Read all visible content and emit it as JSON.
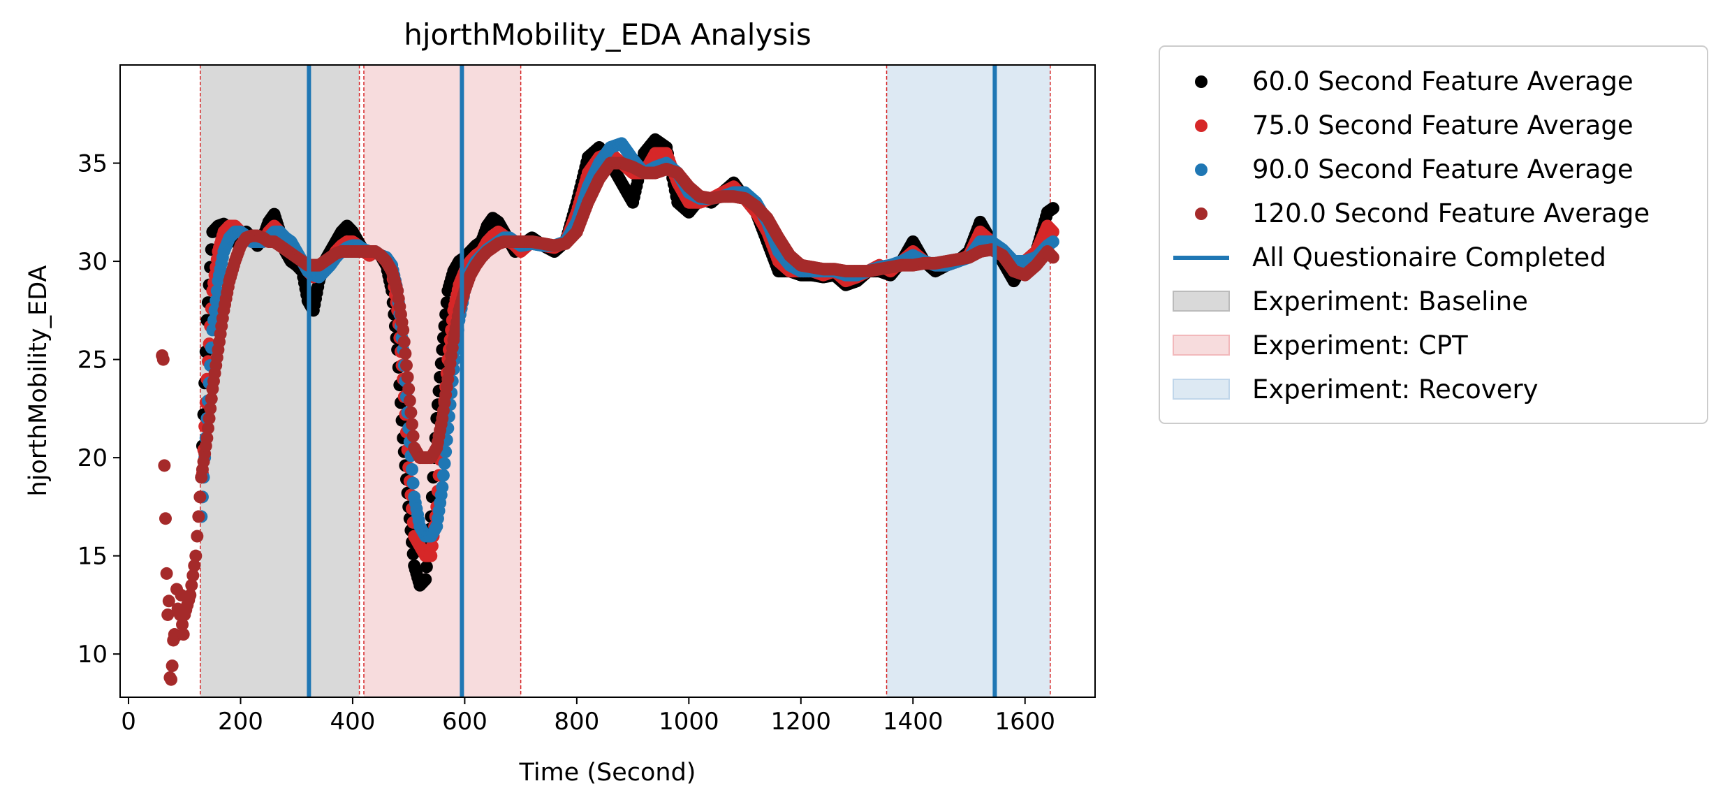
{
  "chart_data": {
    "type": "scatter",
    "title": "hjorthMobility_EDA Analysis",
    "xlabel": "Time (Second)",
    "ylabel": "hjorthMobility_EDA",
    "xlim": [
      -15,
      1725
    ],
    "ylim": [
      7.8,
      40
    ],
    "xticks": [
      0,
      200,
      400,
      600,
      800,
      1000,
      1200,
      1400,
      1600
    ],
    "yticks": [
      10,
      15,
      20,
      25,
      30,
      35
    ],
    "grid": false,
    "legend_position": "outside-right",
    "series": [
      {
        "name": "60.0 Second Feature Average",
        "color": "#000000",
        "x": [
          130,
          140,
          150,
          160,
          170,
          180,
          190,
          200,
          210,
          220,
          230,
          240,
          250,
          260,
          270,
          280,
          290,
          300,
          310,
          320,
          330,
          340,
          350,
          360,
          370,
          380,
          390,
          400,
          410,
          420,
          430,
          440,
          450,
          460,
          470,
          480,
          490,
          500,
          510,
          520,
          530,
          540,
          550,
          560,
          570,
          580,
          590,
          600,
          610,
          620,
          630,
          640,
          650,
          660,
          670,
          680,
          690,
          700,
          720,
          740,
          760,
          780,
          800,
          820,
          840,
          860,
          880,
          900,
          920,
          940,
          960,
          980,
          1000,
          1020,
          1040,
          1060,
          1080,
          1100,
          1120,
          1140,
          1160,
          1180,
          1200,
          1220,
          1240,
          1260,
          1280,
          1300,
          1320,
          1340,
          1360,
          1380,
          1400,
          1420,
          1440,
          1460,
          1480,
          1500,
          1520,
          1540,
          1560,
          1580,
          1600,
          1620,
          1640,
          1650
        ],
        "y": [
          19,
          27,
          31.5,
          31.8,
          31.9,
          31.5,
          31,
          31.3,
          31.5,
          31.2,
          30.8,
          31.2,
          32,
          32.4,
          31.5,
          30.5,
          30,
          29.8,
          29.5,
          28,
          27.5,
          29,
          30,
          30.5,
          31,
          31.5,
          31.8,
          31.5,
          31,
          30.5,
          30.3,
          30.5,
          30.3,
          29.8,
          28.5,
          25.5,
          21,
          17.5,
          14.5,
          13.5,
          13.8,
          17,
          22,
          25.5,
          28.5,
          29.5,
          30,
          30.2,
          30.5,
          30.8,
          31,
          31.8,
          32.2,
          32,
          31.5,
          31,
          30.5,
          30.8,
          31.2,
          30.8,
          30.5,
          31,
          33,
          35.3,
          35.8,
          35,
          34,
          33,
          35.5,
          36.2,
          35.8,
          33,
          32.5,
          33.2,
          33,
          33.5,
          34,
          33.2,
          32.5,
          31,
          29.5,
          29.5,
          29.3,
          29.3,
          29.2,
          29.3,
          28.8,
          29,
          29.5,
          29.5,
          29.3,
          30,
          31,
          30,
          29.5,
          29.8,
          30,
          30.5,
          32,
          31,
          30,
          29,
          30,
          30.5,
          32.5,
          32.7
        ]
      },
      {
        "name": "75.0 Second Feature Average",
        "color": "#d62728",
        "x": [
          130,
          140,
          150,
          160,
          170,
          180,
          190,
          200,
          210,
          220,
          230,
          240,
          250,
          260,
          270,
          280,
          290,
          300,
          310,
          320,
          330,
          340,
          350,
          360,
          370,
          380,
          390,
          400,
          410,
          420,
          430,
          440,
          450,
          460,
          470,
          480,
          490,
          500,
          510,
          520,
          530,
          540,
          550,
          560,
          570,
          580,
          590,
          600,
          610,
          620,
          630,
          640,
          650,
          660,
          670,
          680,
          690,
          700,
          720,
          740,
          760,
          780,
          800,
          820,
          840,
          860,
          880,
          900,
          920,
          940,
          960,
          980,
          1000,
          1020,
          1040,
          1060,
          1080,
          1100,
          1120,
          1140,
          1160,
          1180,
          1200,
          1220,
          1240,
          1260,
          1280,
          1300,
          1320,
          1340,
          1360,
          1380,
          1400,
          1420,
          1440,
          1460,
          1480,
          1500,
          1520,
          1540,
          1560,
          1580,
          1600,
          1620,
          1640,
          1650
        ],
        "y": [
          18,
          24,
          28.5,
          30.5,
          31.5,
          31.8,
          31.8,
          31.5,
          31.2,
          31,
          31,
          31,
          31.5,
          31.8,
          31.5,
          31,
          30.5,
          30.3,
          30,
          29.5,
          29.2,
          29.5,
          29.8,
          30,
          30.5,
          30.8,
          31,
          31,
          30.8,
          30.5,
          30.3,
          30.5,
          30.3,
          30,
          29.5,
          27.5,
          24,
          19.5,
          16,
          15.5,
          15,
          15,
          17.5,
          21.5,
          25,
          27.5,
          28.8,
          29.5,
          30,
          30.3,
          30.5,
          31,
          31.3,
          31.5,
          31.3,
          31,
          30.8,
          30.5,
          31,
          30.8,
          30.7,
          31,
          32.5,
          34.5,
          35.3,
          35.5,
          35,
          34.5,
          34.5,
          35.5,
          35.5,
          34,
          33,
          33,
          33.2,
          33.5,
          33.8,
          33.2,
          32.5,
          31.5,
          30,
          29.5,
          29.5,
          29.5,
          29.3,
          29.5,
          29,
          29.2,
          29.5,
          29.8,
          29.5,
          30,
          30.5,
          30,
          29.8,
          29.8,
          30,
          30.3,
          31.5,
          31,
          30.5,
          29.5,
          30,
          30.5,
          31.8,
          31.5
        ]
      },
      {
        "name": "90.0 Second Feature Average",
        "color": "#1f77b4",
        "x": [
          130,
          140,
          150,
          160,
          170,
          180,
          190,
          200,
          210,
          220,
          230,
          240,
          250,
          260,
          270,
          280,
          290,
          300,
          310,
          320,
          330,
          340,
          350,
          360,
          370,
          380,
          390,
          400,
          410,
          420,
          430,
          440,
          450,
          460,
          470,
          480,
          490,
          500,
          510,
          520,
          530,
          540,
          550,
          560,
          570,
          580,
          590,
          600,
          610,
          620,
          630,
          640,
          650,
          660,
          670,
          680,
          690,
          700,
          720,
          740,
          760,
          780,
          800,
          820,
          840,
          860,
          880,
          900,
          920,
          940,
          960,
          980,
          1000,
          1020,
          1040,
          1060,
          1080,
          1100,
          1120,
          1140,
          1160,
          1180,
          1200,
          1220,
          1240,
          1260,
          1280,
          1300,
          1320,
          1340,
          1360,
          1380,
          1400,
          1420,
          1440,
          1460,
          1480,
          1500,
          1520,
          1540,
          1560,
          1580,
          1600,
          1620,
          1640,
          1650
        ],
        "y": [
          17,
          22,
          26.5,
          29,
          30.5,
          31.2,
          31.5,
          31.5,
          31.3,
          31,
          31,
          31,
          31.2,
          31.5,
          31.5,
          31.2,
          31,
          30.5,
          30,
          29.5,
          29.3,
          29.2,
          29.5,
          29.8,
          30.2,
          30.5,
          30.7,
          30.8,
          30.8,
          30.6,
          30.5,
          30.5,
          30.3,
          30.2,
          29.8,
          28.5,
          25.5,
          21.5,
          18,
          16.5,
          16,
          16,
          16.5,
          18.5,
          21.5,
          24.5,
          27,
          28.5,
          29.5,
          30,
          30.3,
          30.6,
          30.8,
          31,
          31.2,
          31.2,
          31,
          30.8,
          30.9,
          30.8,
          30.8,
          31,
          32,
          33.8,
          35,
          35.8,
          36,
          35.2,
          34.5,
          34.8,
          35,
          34.5,
          33.5,
          33.2,
          33.2,
          33.3,
          33.5,
          33.5,
          33,
          32,
          30.5,
          29.8,
          29.5,
          29.5,
          29.5,
          29.5,
          29.3,
          29.3,
          29.5,
          29.7,
          29.8,
          30,
          30.3,
          30,
          29.8,
          29.8,
          30,
          30.2,
          31,
          31,
          30.6,
          30,
          30,
          30.2,
          30.8,
          31
        ]
      },
      {
        "name": "120.0 Second Feature Average",
        "color": "#a52a2a",
        "x": [
          60,
          62,
          64,
          66,
          68,
          70,
          72,
          74,
          76,
          78,
          80,
          82,
          84,
          86,
          88,
          90,
          92,
          94,
          96,
          98,
          100,
          105,
          110,
          115,
          120,
          125,
          130,
          140,
          150,
          160,
          170,
          180,
          190,
          200,
          210,
          220,
          230,
          240,
          250,
          260,
          270,
          280,
          290,
          300,
          310,
          320,
          330,
          340,
          350,
          360,
          370,
          380,
          390,
          400,
          410,
          420,
          430,
          440,
          450,
          460,
          470,
          480,
          490,
          500,
          510,
          520,
          530,
          540,
          550,
          560,
          570,
          580,
          590,
          600,
          610,
          620,
          630,
          640,
          650,
          660,
          670,
          680,
          690,
          700,
          720,
          740,
          760,
          780,
          800,
          820,
          840,
          860,
          880,
          900,
          920,
          940,
          960,
          980,
          1000,
          1020,
          1040,
          1060,
          1080,
          1100,
          1120,
          1140,
          1160,
          1180,
          1200,
          1220,
          1240,
          1260,
          1280,
          1300,
          1320,
          1340,
          1360,
          1380,
          1400,
          1420,
          1440,
          1460,
          1480,
          1500,
          1520,
          1540,
          1560,
          1580,
          1600,
          1620,
          1640,
          1650
        ],
        "y": [
          25.2,
          25,
          19.6,
          16.9,
          14.1,
          12,
          12.7,
          8.8,
          8.7,
          9.4,
          10.7,
          11,
          10.9,
          13.3,
          12.3,
          12.2,
          12,
          13,
          11.5,
          11,
          12,
          12.5,
          13,
          14,
          15,
          17,
          19,
          21,
          23.5,
          25.5,
          27.5,
          29,
          30,
          30.8,
          31.2,
          31.3,
          31.3,
          31.2,
          31,
          31,
          30.8,
          30.6,
          30.4,
          30.2,
          30,
          29.8,
          29.8,
          29.8,
          30,
          30.2,
          30.4,
          30.5,
          30.5,
          30.5,
          30.5,
          30.5,
          30.5,
          30.5,
          30.3,
          30,
          29.5,
          28.5,
          26.5,
          23.5,
          20.5,
          20,
          20,
          20,
          20.5,
          22,
          24,
          26,
          27.5,
          28.5,
          29.3,
          29.8,
          30.2,
          30.5,
          30.7,
          30.9,
          31,
          31,
          31,
          31,
          31,
          30.9,
          30.8,
          30.9,
          31.5,
          33,
          34.2,
          35,
          35,
          34.8,
          34.5,
          34.5,
          34.7,
          34.5,
          33.8,
          33.3,
          33.2,
          33.3,
          33.3,
          33.2,
          32.8,
          32.2,
          31.2,
          30.3,
          29.8,
          29.7,
          29.6,
          29.6,
          29.5,
          29.5,
          29.5,
          29.6,
          29.7,
          29.8,
          29.8,
          29.9,
          29.9,
          30,
          30.1,
          30.2,
          30.5,
          30.6,
          30.3,
          29.5,
          29.3,
          29.8,
          30.5,
          30.2
        ]
      }
    ],
    "questionnaire_lines": {
      "name": "All Questionaire Completed",
      "color": "#1f77b4",
      "x": [
        322,
        595,
        1546
      ]
    },
    "experiment_spans": [
      {
        "name": "Experiment: Baseline",
        "color": "#d9d9d9",
        "edge": "#bbbbbb",
        "start": 128,
        "end": 412,
        "dashed_bounds": [
          128,
          412
        ]
      },
      {
        "name": "Experiment: CPT",
        "color": "#f7dcdd",
        "edge": "#f2b8bb",
        "start": 420,
        "end": 700,
        "dashed_bounds": [
          420,
          700
        ]
      },
      {
        "name": "Experiment: Recovery",
        "color": "#dde9f3",
        "edge": "#c0d6ea",
        "start": 1353,
        "end": 1645,
        "dashed_bounds": [
          1353,
          1645
        ]
      }
    ],
    "bound_line_color": "#d62728"
  }
}
